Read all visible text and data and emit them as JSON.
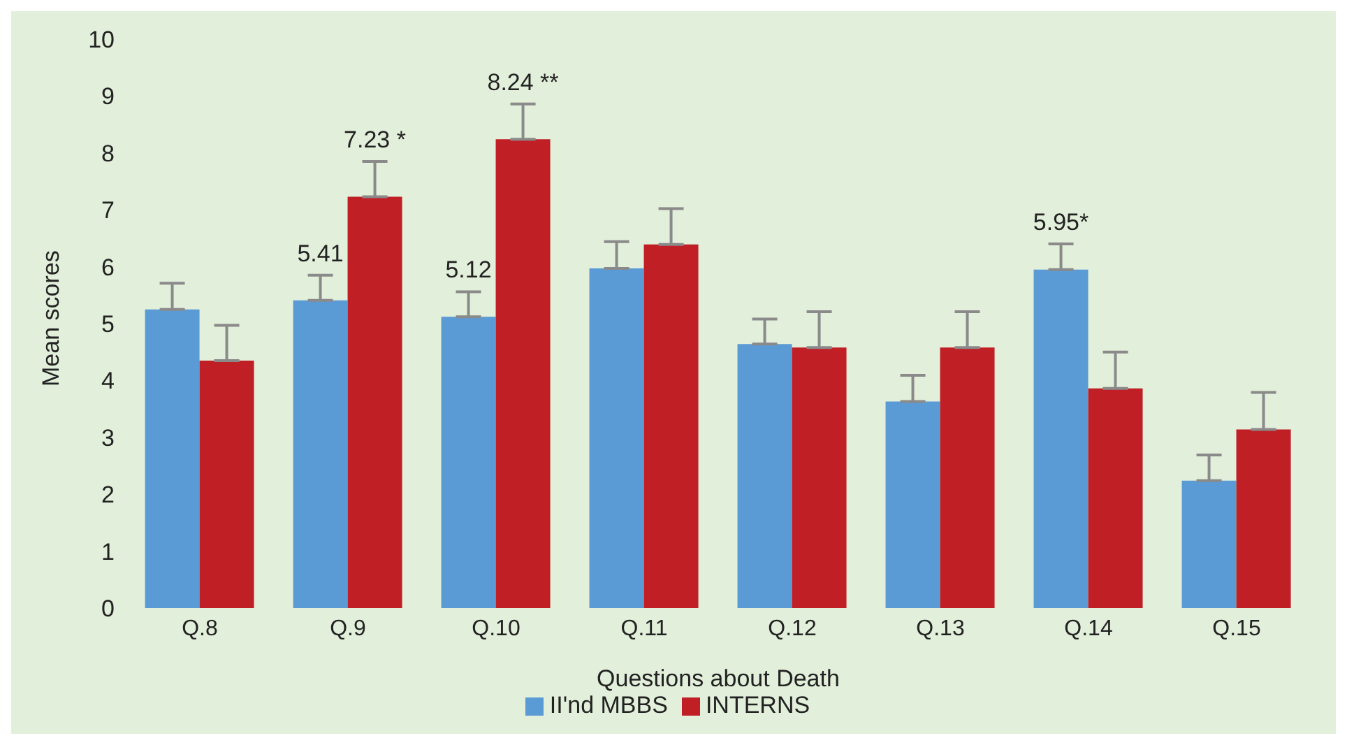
{
  "chart_data": {
    "type": "bar",
    "xlabel": "Questions about Death",
    "ylabel": "Mean scores",
    "categories": [
      "Q.8",
      "Q.9",
      "Q.10",
      "Q.11",
      "Q.12",
      "Q.13",
      "Q.14",
      "Q.15"
    ],
    "series": [
      {
        "name": "II'nd MBBS",
        "color": "#5b9bd5",
        "values": [
          5.25,
          5.41,
          5.12,
          5.97,
          4.64,
          3.63,
          5.95,
          2.24
        ],
        "errors": [
          [
            5.25,
            5.71
          ],
          [
            5.41,
            5.85
          ],
          [
            5.12,
            5.56
          ],
          [
            5.97,
            6.44
          ],
          [
            4.64,
            5.08
          ],
          [
            3.63,
            4.09
          ],
          [
            5.95,
            6.4
          ],
          [
            2.24,
            2.69
          ]
        ],
        "value_labels": [
          null,
          "5.41",
          "5.12",
          null,
          null,
          null,
          "5.95*",
          null
        ]
      },
      {
        "name": "INTERNS",
        "color": "#c01f26",
        "values": [
          4.35,
          7.23,
          8.24,
          6.39,
          4.58,
          4.58,
          3.86,
          3.14
        ],
        "errors": [
          [
            4.35,
            4.97
          ],
          [
            7.23,
            7.85
          ],
          [
            8.24,
            8.86
          ],
          [
            6.39,
            7.02
          ],
          [
            4.58,
            5.21
          ],
          [
            4.58,
            5.21
          ],
          [
            3.86,
            4.5
          ],
          [
            3.14,
            3.79
          ]
        ],
        "value_labels": [
          null,
          "7.23 *",
          "8.24 **",
          null,
          null,
          null,
          null,
          null
        ]
      }
    ],
    "ylim": [
      0,
      10
    ],
    "yticks": [
      0,
      1,
      2,
      3,
      4,
      5,
      6,
      7,
      8,
      9,
      10
    ],
    "grid": false,
    "legend": "bottom"
  }
}
